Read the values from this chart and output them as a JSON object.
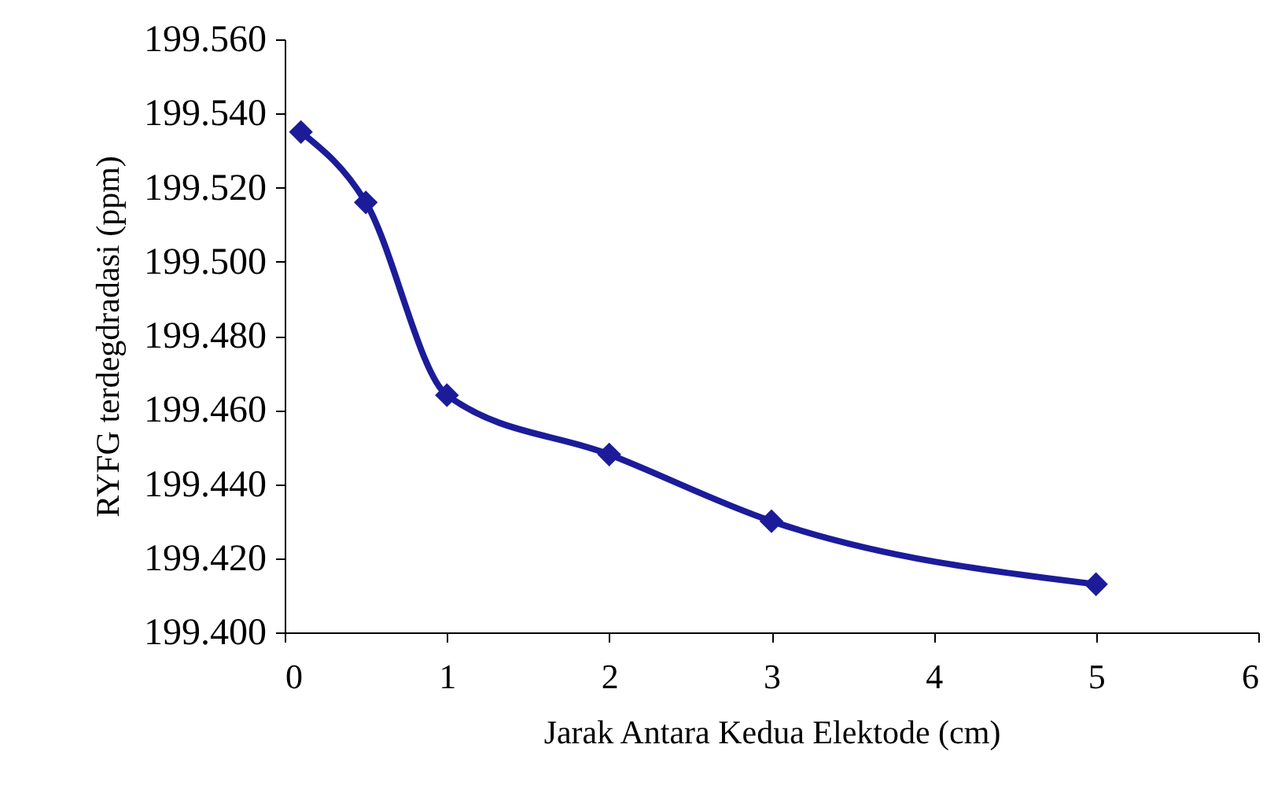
{
  "chart_data": {
    "type": "line",
    "xlabel": "Jarak Antara Kedua Elektode (cm)",
    "ylabel": "RYFG terdegdradasi (ppm)",
    "x": [
      0.1,
      0.5,
      1,
      2,
      3,
      5
    ],
    "series": [
      {
        "color": "#1c1c9a",
        "values": [
          199.535,
          199.516,
          199.464,
          199.448,
          199.43,
          199.413
        ]
      }
    ],
    "xlim": [
      0,
      6
    ],
    "xticks": [
      0,
      1,
      2,
      3,
      4,
      5,
      6
    ],
    "ylim": [
      199.4,
      199.56
    ],
    "yticks": [
      {
        "value": 199.4,
        "label": "199.400"
      },
      {
        "value": 199.42,
        "label": "199.420"
      },
      {
        "value": 199.44,
        "label": "199.440"
      },
      {
        "value": 199.46,
        "label": "199.460"
      },
      {
        "value": 199.48,
        "label": "199.480"
      },
      {
        "value": 199.5,
        "label": "199.500"
      },
      {
        "value": 199.52,
        "label": "199.520"
      },
      {
        "value": 199.54,
        "label": "199.540"
      },
      {
        "value": 199.56,
        "label": "199.560"
      }
    ],
    "grid": false,
    "marker": "diamond",
    "line_style": "solid"
  }
}
